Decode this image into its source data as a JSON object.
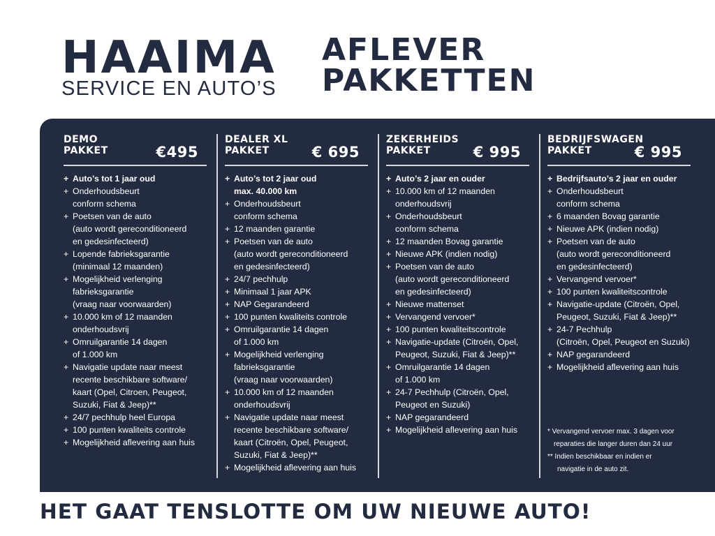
{
  "brand": {
    "name": "HAAIMA",
    "tagline": "SERVICE EN AUTO’S"
  },
  "title": {
    "line1": "AFLEVER",
    "line2": "PAKKETTEN"
  },
  "colors": {
    "navy": "#232b40",
    "text_on_navy": "#ffffff"
  },
  "packages": [
    {
      "name1": "DEMO",
      "name2": "PAKKET",
      "price": "€495",
      "items": [
        [
          "Auto’s tot 1 jaar oud"
        ],
        [
          "Onderhoudsbeurt",
          "conform schema"
        ],
        [
          "Poetsen van de auto",
          "(auto wordt gereconditioneerd",
          "en gedesinfecteerd)"
        ],
        [
          "Lopende fabrieksgarantie",
          "(minimaal 12 maanden)"
        ],
        [
          "Mogelijkheid verlenging",
          "fabrieksgarantie",
          "(vraag naar voorwaarden)"
        ],
        [
          "10.000 km of 12 maanden",
          "onderhoudsvrij"
        ],
        [
          "Omruilgarantie 14 dagen",
          "of 1.000 km"
        ],
        [
          "Navigatie update naar meest",
          "recente beschikbare software/",
          "kaart (Opel, Citroen,  Peugeot,",
          "Suzuki, Fiat & Jeep)**"
        ],
        [
          "24/7 pechhulp heel Europa"
        ],
        [
          "100 punten kwaliteits controle"
        ],
        [
          "Mogelijkheid aflevering aan huis"
        ]
      ]
    },
    {
      "name1": "DEALER XL",
      "name2": "PAKKET",
      "price": "€ 695",
      "items": [
        [
          "Auto’s tot 2 jaar oud",
          "max. 40.000 km"
        ],
        [
          "Onderhoudsbeurt",
          "conform schema"
        ],
        [
          "12 maanden garantie"
        ],
        [
          "Poetsen van de auto",
          "(auto wordt gereconditioneerd",
          "en gedesinfecteerd)"
        ],
        [
          "24/7 pechhulp"
        ],
        [
          "Minimaal 1 jaar APK"
        ],
        [
          "NAP Gegarandeerd"
        ],
        [
          "100 punten kwaliteits controle"
        ],
        [
          "Omruilgarantie 14 dagen",
          "of 1.000 km"
        ],
        [
          "Mogelijkheid verlenging",
          "fabrieksgarantie",
          "(vraag naar voorwaarden)"
        ],
        [
          "10.000 km of 12 maanden",
          "onderhoudsvrij"
        ],
        [
          "Navigatie update naar meest",
          "recente beschikbare software/",
          "kaart (Citroën, Opel, Peugeot,",
          "Suzuki, Fiat & Jeep)**"
        ],
        [
          "Mogelijkheid aflevering aan huis"
        ]
      ]
    },
    {
      "name1": "ZEKERHEIDS",
      "name2": "PAKKET",
      "price": "€ 995",
      "items": [
        [
          "Auto’s 2 jaar en ouder"
        ],
        [
          "10.000 km of 12 maanden",
          "onderhoudsvrij"
        ],
        [
          "Onderhoudsbeurt",
          "conform schema"
        ],
        [
          "12 maanden Bovag garantie"
        ],
        [
          "Nieuwe APK (indien nodig)"
        ],
        [
          "Poetsen van de auto",
          "(auto wordt gereconditioneerd",
          "en gedesinfecteerd)"
        ],
        [
          "Nieuwe mattenset"
        ],
        [
          "Vervangend vervoer*"
        ],
        [
          "100 punten kwaliteitscontrole"
        ],
        [
          "Navigatie-update (Citroën, Opel,",
          "Peugeot, Suzuki, Fiat & Jeep)**"
        ],
        [
          "Omruilgarantie 14 dagen",
          "of 1.000 km"
        ],
        [
          "24-7 Pechhulp (Citroën, Opel,",
          "Peugeot en Suzuki)"
        ],
        [
          "NAP gegarandeerd"
        ],
        [
          "Mogelijkheid aflevering aan huis"
        ]
      ]
    },
    {
      "name1": "BEDRIJFSWAGEN",
      "name2": "PAKKET",
      "price": "€ 995",
      "items": [
        [
          "Bedrijfsauto’s 2 jaar en ouder"
        ],
        [
          "Onderhoudsbeurt",
          "conform schema"
        ],
        [
          "6 maanden Bovag garantie"
        ],
        [
          "Nieuwe APK (indien nodig)"
        ],
        [
          "Poetsen van de auto",
          "(auto wordt gereconditioneerd",
          "en gedesinfecteerd)"
        ],
        [
          "Vervangend vervoer*"
        ],
        [
          "100 punten kwaliteitscontrole"
        ],
        [
          "Navigatie-update (Citroën, Opel,",
          "Peugeot, Suzuki, Fiat & Jeep)**"
        ],
        [
          "24-7 Pechhulp",
          "(Citroën, Opel, Peugeot en Suzuki)"
        ],
        [
          "NAP gegarandeerd"
        ],
        [
          "Mogelijkheid aflevering aan huis"
        ]
      ]
    }
  ],
  "footnotes": {
    "n1a": "* Vervangend vervoer max. 3 dagen voor",
    "n1b": "reparaties die langer duren dan 24 uur",
    "n2a": "** Indien beschikbaar en indien er",
    "n2b": "navigatie in de auto zit."
  },
  "slogan": "HET GAAT TENSLOTTE OM UW NIEUWE AUTO!"
}
